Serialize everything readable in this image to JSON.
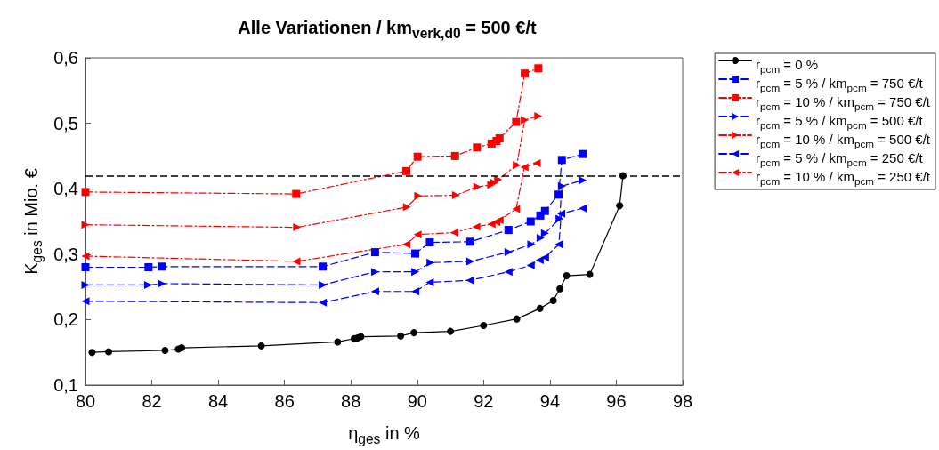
{
  "chart_data": {
    "type": "line",
    "title": "Alle Variationen / km$_{verk,d0}$ = 500 €/t",
    "xlabel": "η$_{ges}$ in %",
    "ylabel": "K$_{ges}$ in Mio. €",
    "xlim": [
      80,
      98
    ],
    "xticks": [
      80,
      82,
      84,
      86,
      88,
      90,
      92,
      94,
      96,
      98
    ],
    "ylim": [
      0.1,
      0.6
    ],
    "yticks": [
      {
        "value": 0.1,
        "label": "0,1"
      },
      {
        "value": 0.2,
        "label": "0,2"
      },
      {
        "value": 0.3,
        "label": "0,3"
      },
      {
        "value": 0.4,
        "label": "0,4"
      },
      {
        "value": 0.5,
        "label": "0,5"
      },
      {
        "value": 0.6,
        "label": "0,6"
      }
    ],
    "grid": false,
    "legend": "right",
    "ref_lines": [
      {
        "axis": "y",
        "value": 0.42,
        "label": null,
        "color": "#000000",
        "line_style": "dashed"
      }
    ],
    "series": [
      {
        "name": "r$_{pcm}$ = 0 %",
        "color": "#000000",
        "marker": "circle",
        "line_style": "solid",
        "x": [
          80.2,
          80.7,
          82.4,
          82.8,
          82.9,
          85.3,
          87.6,
          88.1,
          88.2,
          88.3,
          89.5,
          89.9,
          91.0,
          92.0,
          93.0,
          93.7,
          94.1,
          94.3,
          94.5,
          95.2,
          96.1,
          96.2
        ],
        "values": [
          0.15,
          0.151,
          0.153,
          0.155,
          0.157,
          0.16,
          0.166,
          0.171,
          0.172,
          0.174,
          0.175,
          0.18,
          0.182,
          0.191,
          0.201,
          0.217,
          0.229,
          0.247,
          0.267,
          0.269,
          0.374,
          0.42
        ]
      },
      {
        "name": "r$_{pcm}$ = 5 % / km$_{pcm}$ = 750 €/t",
        "color": "#0000ff",
        "marker": "square",
        "line_style": "dashed",
        "x": [
          80.0,
          81.9,
          82.3,
          87.15,
          88.73,
          89.94,
          90.38,
          91.6,
          92.75,
          93.42,
          93.71,
          93.85,
          94.26,
          94.36,
          94.99
        ],
        "values": [
          0.28,
          0.28,
          0.281,
          0.281,
          0.303,
          0.301,
          0.318,
          0.319,
          0.337,
          0.35,
          0.359,
          0.366,
          0.391,
          0.444,
          0.453
        ]
      },
      {
        "name": "r$_{pcm}$ = 10 % / km$_{pcm}$ = 750 €/t",
        "color": "#ff0000",
        "marker": "square",
        "line_style": "dotted",
        "x": [
          80.0,
          86.35,
          89.67,
          90.01,
          91.14,
          91.8,
          92.24,
          92.39,
          92.48,
          92.98,
          93.24,
          93.65
        ],
        "values": [
          0.395,
          0.392,
          0.427,
          0.449,
          0.45,
          0.463,
          0.469,
          0.473,
          0.477,
          0.502,
          0.576,
          0.584
        ]
      },
      {
        "name": "r$_{pcm}$ = 5 % / km$_{pcm}$ = 500 €/t",
        "color": "#0000ff",
        "marker": "triangle-right",
        "line_style": "dashed",
        "x": [
          80.0,
          81.89,
          82.3,
          87.15,
          88.73,
          89.94,
          90.4,
          91.6,
          92.75,
          93.44,
          93.72,
          93.85,
          94.29,
          94.36,
          94.99
        ],
        "values": [
          0.253,
          0.253,
          0.255,
          0.253,
          0.273,
          0.273,
          0.287,
          0.289,
          0.303,
          0.315,
          0.325,
          0.332,
          0.354,
          0.404,
          0.413
        ]
      },
      {
        "name": "r$_{pcm}$ = 10 % / km$_{pcm}$ = 500 €/t",
        "color": "#ff0000",
        "marker": "triangle-right",
        "line_style": "dotted",
        "x": [
          80.0,
          86.38,
          89.69,
          90.03,
          91.17,
          91.81,
          92.23,
          92.32,
          92.44,
          93.0,
          93.24,
          93.65
        ],
        "values": [
          0.345,
          0.341,
          0.372,
          0.389,
          0.39,
          0.403,
          0.406,
          0.409,
          0.414,
          0.436,
          0.505,
          0.511
        ]
      },
      {
        "name": "r$_{pcm}$ = 5 % / km$_{pcm}$ = 250 €/t",
        "color": "#0000ff",
        "marker": "triangle-left",
        "line_style": "dashed",
        "x": [
          80.0,
          87.15,
          88.73,
          89.94,
          90.38,
          91.59,
          92.75,
          93.42,
          93.69,
          93.85,
          94.27,
          94.34,
          94.99
        ],
        "values": [
          0.228,
          0.226,
          0.243,
          0.243,
          0.257,
          0.26,
          0.273,
          0.283,
          0.291,
          0.295,
          0.315,
          0.362,
          0.37
        ]
      },
      {
        "name": "r$_{pcm}$ = 10 % / km$_{pcm}$ = 250 €/t",
        "color": "#ff0000",
        "marker": "triangle-left",
        "line_style": "dotted",
        "x": [
          80.0,
          86.36,
          89.67,
          90.01,
          91.12,
          91.78,
          92.24,
          92.38,
          92.48,
          92.98,
          93.23,
          93.6
        ],
        "values": [
          0.297,
          0.289,
          0.315,
          0.33,
          0.333,
          0.342,
          0.346,
          0.349,
          0.352,
          0.369,
          0.433,
          0.439
        ]
      }
    ]
  }
}
